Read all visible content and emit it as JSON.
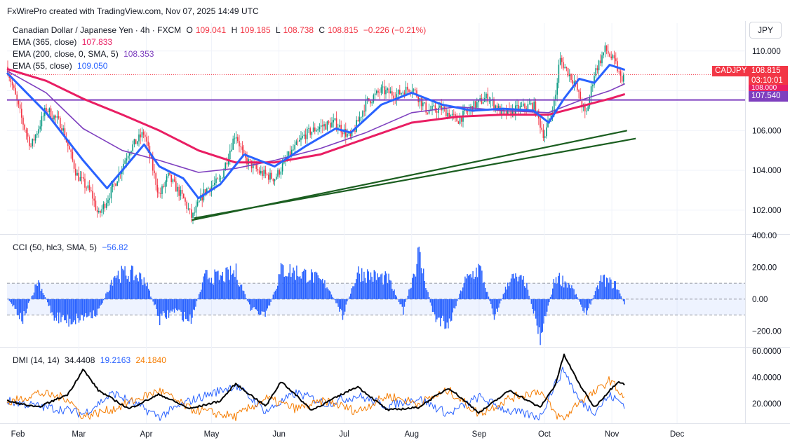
{
  "watermark": "FxWirePro created with TradingView.com, Nov 07, 2025 14:49 UTC",
  "currency": "JPY",
  "main_legend": {
    "symbol": "Canadian Dollar / Japanese Yen · 4h · FXCM",
    "o_label": "O",
    "o_value": "109.041",
    "h_label": "H",
    "h_value": "109.185",
    "l_label": "L",
    "l_value": "108.738",
    "c_label": "C",
    "c_value": "108.815",
    "change": "−0.226 (−0.21%)",
    "ema365_label": "EMA (365, close)",
    "ema365_value": "107.833",
    "ema200_label": "EMA (200, close, 0, SMA, 5)",
    "ema200_value": "108.353",
    "ema55_label": "EMA (55, close)",
    "ema55_value": "109.050"
  },
  "price_tags": {
    "symbol_tag": "CADJPY",
    "last_price": "108.815",
    "countdown": "03:10:01",
    "hidden_level": "108.000",
    "horizontal_level": "107.540"
  },
  "cci_legend": {
    "label": "CCI (50, hlc3, SMA, 5)",
    "value": "−56.82"
  },
  "dmi_legend": {
    "label": "DMI (14, 14)",
    "adx": "34.4408",
    "plus_di": "19.2163",
    "minus_di": "24.1840"
  },
  "colors": {
    "up": "#089981",
    "down": "#f23645",
    "ema55": "#2962ff",
    "ema200": "#7e3fbf",
    "ema365": "#e91e63",
    "hline": "#7e3fbf",
    "trend": "#1b5e20",
    "cci": "#2962ff",
    "adx": "#000000",
    "plus_di": "#2962ff",
    "minus_di": "#f57c00"
  },
  "chart_data": [
    {
      "type": "candlestick",
      "timeframe": "4h",
      "x_tick_labels": [
        "Feb",
        "Mar",
        "Apr",
        "May",
        "Jun",
        "Jul",
        "Aug",
        "Sep",
        "Oct",
        "Nov",
        "Dec"
      ],
      "y_tick_labels": [
        "102.000",
        "104.000",
        "106.000",
        "108.000",
        "110.000"
      ],
      "ylim": [
        100.8,
        111.4
      ],
      "price_path": [
        [
          "2025-01-27",
          109.2
        ],
        [
          "2025-02-03",
          106.5
        ],
        [
          "2025-02-07",
          105.2
        ],
        [
          "2025-02-14",
          107.1
        ],
        [
          "2025-02-21",
          106.3
        ],
        [
          "2025-02-28",
          103.8
        ],
        [
          "2025-03-07",
          102.8
        ],
        [
          "2025-03-10",
          101.7
        ],
        [
          "2025-03-17",
          103.2
        ],
        [
          "2025-03-24",
          105.0
        ],
        [
          "2025-03-31",
          105.9
        ],
        [
          "2025-04-07",
          102.7
        ],
        [
          "2025-04-11",
          103.7
        ],
        [
          "2025-04-18",
          102.6
        ],
        [
          "2025-04-22",
          101.6
        ],
        [
          "2025-04-28",
          103.0
        ],
        [
          "2025-05-05",
          103.5
        ],
        [
          "2025-05-12",
          105.9
        ],
        [
          "2025-05-16",
          104.6
        ],
        [
          "2025-05-23",
          103.9
        ],
        [
          "2025-05-30",
          103.6
        ],
        [
          "2025-06-06",
          104.8
        ],
        [
          "2025-06-13",
          105.8
        ],
        [
          "2025-06-20",
          106.2
        ],
        [
          "2025-06-27",
          106.4
        ],
        [
          "2025-07-04",
          105.6
        ],
        [
          "2025-07-11",
          107.4
        ],
        [
          "2025-07-18",
          108.0
        ],
        [
          "2025-07-25",
          107.8
        ],
        [
          "2025-08-01",
          108.2
        ],
        [
          "2025-08-08",
          107.0
        ],
        [
          "2025-08-15",
          107.1
        ],
        [
          "2025-08-22",
          106.5
        ],
        [
          "2025-08-29",
          107.2
        ],
        [
          "2025-09-05",
          107.7
        ],
        [
          "2025-09-12",
          106.8
        ],
        [
          "2025-09-19",
          107.1
        ],
        [
          "2025-09-26",
          107.3
        ],
        [
          "2025-10-01",
          105.7
        ],
        [
          "2025-10-06",
          107.6
        ],
        [
          "2025-10-08",
          109.6
        ],
        [
          "2025-10-15",
          108.4
        ],
        [
          "2025-10-20",
          106.7
        ],
        [
          "2025-10-24",
          108.9
        ],
        [
          "2025-10-29",
          110.1
        ],
        [
          "2025-11-03",
          109.3
        ],
        [
          "2025-11-05",
          108.6
        ],
        [
          "2025-11-07",
          108.815
        ]
      ],
      "ema55_path": [
        [
          "2025-01-27",
          108.9
        ],
        [
          "2025-02-14",
          106.9
        ],
        [
          "2025-03-03",
          104.5
        ],
        [
          "2025-03-14",
          103.1
        ],
        [
          "2025-03-21",
          104.0
        ],
        [
          "2025-03-31",
          105.3
        ],
        [
          "2025-04-07",
          104.2
        ],
        [
          "2025-04-18",
          103.6
        ],
        [
          "2025-04-25",
          102.6
        ],
        [
          "2025-05-05",
          103.3
        ],
        [
          "2025-05-16",
          104.8
        ],
        [
          "2025-05-30",
          104.2
        ],
        [
          "2025-06-13",
          105.2
        ],
        [
          "2025-06-27",
          106.1
        ],
        [
          "2025-07-04",
          105.9
        ],
        [
          "2025-07-18",
          107.3
        ],
        [
          "2025-08-01",
          107.9
        ],
        [
          "2025-08-15",
          107.3
        ],
        [
          "2025-08-29",
          107.0
        ],
        [
          "2025-09-12",
          107.1
        ],
        [
          "2025-09-26",
          107.0
        ],
        [
          "2025-10-03",
          106.4
        ],
        [
          "2025-10-10",
          107.6
        ],
        [
          "2025-10-17",
          108.6
        ],
        [
          "2025-10-24",
          108.4
        ],
        [
          "2025-10-31",
          109.3
        ],
        [
          "2025-11-07",
          109.05
        ]
      ],
      "ema200_path": [
        [
          "2025-01-27",
          109.0
        ],
        [
          "2025-02-14",
          107.9
        ],
        [
          "2025-03-03",
          106.1
        ],
        [
          "2025-03-21",
          105.0
        ],
        [
          "2025-04-07",
          104.5
        ],
        [
          "2025-04-25",
          103.9
        ],
        [
          "2025-05-12",
          104.1
        ],
        [
          "2025-05-30",
          104.5
        ],
        [
          "2025-06-20",
          105.1
        ],
        [
          "2025-07-11",
          105.9
        ],
        [
          "2025-08-01",
          106.9
        ],
        [
          "2025-08-22",
          107.2
        ],
        [
          "2025-09-12",
          107.0
        ],
        [
          "2025-10-03",
          106.9
        ],
        [
          "2025-10-17",
          107.5
        ],
        [
          "2025-10-31",
          108.0
        ],
        [
          "2025-11-07",
          108.353
        ]
      ],
      "ema365_path": [
        [
          "2025-01-27",
          109.1
        ],
        [
          "2025-02-14",
          108.5
        ],
        [
          "2025-03-03",
          107.6
        ],
        [
          "2025-03-21",
          106.8
        ],
        [
          "2025-04-07",
          106.0
        ],
        [
          "2025-04-25",
          105.0
        ],
        [
          "2025-05-12",
          104.4
        ],
        [
          "2025-05-30",
          104.4
        ],
        [
          "2025-06-20",
          104.8
        ],
        [
          "2025-07-11",
          105.6
        ],
        [
          "2025-08-01",
          106.4
        ],
        [
          "2025-08-22",
          106.7
        ],
        [
          "2025-09-12",
          106.8
        ],
        [
          "2025-10-03",
          106.8
        ],
        [
          "2025-10-17",
          107.2
        ],
        [
          "2025-10-31",
          107.6
        ],
        [
          "2025-11-07",
          107.833
        ]
      ],
      "horizontal_line": 107.54,
      "trendlines": [
        [
          [
            "2025-04-22",
            101.5
          ],
          [
            "2025-11-08",
            106.0
          ]
        ],
        [
          [
            "2025-04-23",
            101.6
          ],
          [
            "2025-11-12",
            105.6
          ]
        ]
      ]
    },
    {
      "type": "bar",
      "name": "CCI (50, hlc3, SMA, 5)",
      "y_tick_labels": [
        "400.00",
        "200.00",
        "0.00",
        "−200.00"
      ],
      "ylim": [
        -300,
        400
      ],
      "band": [
        -100,
        100
      ],
      "values_path": [
        [
          "2025-01-27",
          10
        ],
        [
          "2025-02-03",
          -150
        ],
        [
          "2025-02-10",
          140
        ],
        [
          "2025-02-17",
          -120
        ],
        [
          "2025-02-24",
          -160
        ],
        [
          "2025-03-03",
          -130
        ],
        [
          "2025-03-10",
          -90
        ],
        [
          "2025-03-17",
          180
        ],
        [
          "2025-03-24",
          190
        ],
        [
          "2025-03-31",
          150
        ],
        [
          "2025-04-07",
          -150
        ],
        [
          "2025-04-14",
          -80
        ],
        [
          "2025-04-21",
          -160
        ],
        [
          "2025-04-28",
          170
        ],
        [
          "2025-05-05",
          160
        ],
        [
          "2025-05-12",
          200
        ],
        [
          "2025-05-19",
          -80
        ],
        [
          "2025-05-26",
          -120
        ],
        [
          "2025-06-02",
          220
        ],
        [
          "2025-06-09",
          200
        ],
        [
          "2025-06-16",
          170
        ],
        [
          "2025-06-23",
          100
        ],
        [
          "2025-06-30",
          -120
        ],
        [
          "2025-07-07",
          200
        ],
        [
          "2025-07-14",
          170
        ],
        [
          "2025-07-21",
          150
        ],
        [
          "2025-07-28",
          -90
        ],
        [
          "2025-08-04",
          330
        ],
        [
          "2025-08-11",
          -130
        ],
        [
          "2025-08-18",
          -180
        ],
        [
          "2025-08-25",
          130
        ],
        [
          "2025-09-01",
          230
        ],
        [
          "2025-09-08",
          -130
        ],
        [
          "2025-09-15",
          160
        ],
        [
          "2025-09-22",
          130
        ],
        [
          "2025-09-29",
          -270
        ],
        [
          "2025-10-06",
          170
        ],
        [
          "2025-10-13",
          100
        ],
        [
          "2025-10-20",
          -110
        ],
        [
          "2025-10-27",
          150
        ],
        [
          "2025-11-03",
          100
        ],
        [
          "2025-11-07",
          -56.82
        ]
      ]
    },
    {
      "type": "line",
      "name": "DMI (14, 14)",
      "y_tick_labels": [
        "20.0000",
        "40.0000",
        "60.0000"
      ],
      "ylim": [
        5,
        62
      ],
      "series": [
        {
          "name": "ADX",
          "path": [
            [
              "2025-01-27",
              22
            ],
            [
              "2025-02-10",
              17
            ],
            [
              "2025-02-24",
              27
            ],
            [
              "2025-03-03",
              46
            ],
            [
              "2025-03-10",
              30
            ],
            [
              "2025-03-24",
              16
            ],
            [
              "2025-04-07",
              27
            ],
            [
              "2025-04-21",
              16
            ],
            [
              "2025-05-05",
              22
            ],
            [
              "2025-05-12",
              35
            ],
            [
              "2025-05-26",
              18
            ],
            [
              "2025-06-02",
              37
            ],
            [
              "2025-06-16",
              15
            ],
            [
              "2025-07-07",
              33
            ],
            [
              "2025-07-21",
              15
            ],
            [
              "2025-08-04",
              17
            ],
            [
              "2025-08-18",
              32
            ],
            [
              "2025-09-01",
              13
            ],
            [
              "2025-09-15",
              30
            ],
            [
              "2025-09-29",
              17
            ],
            [
              "2025-10-06",
              34
            ],
            [
              "2025-10-10",
              57
            ],
            [
              "2025-10-17",
              35
            ],
            [
              "2025-10-24",
              17
            ],
            [
              "2025-10-31",
              30
            ],
            [
              "2025-11-04",
              37
            ],
            [
              "2025-11-07",
              34.44
            ]
          ]
        },
        {
          "name": "+DI",
          "path": [
            [
              "2025-01-27",
              22
            ],
            [
              "2025-02-10",
              18
            ],
            [
              "2025-02-24",
              15
            ],
            [
              "2025-03-03",
              12
            ],
            [
              "2025-03-17",
              28
            ],
            [
              "2025-04-07",
              10
            ],
            [
              "2025-04-21",
              22
            ],
            [
              "2025-05-12",
              34
            ],
            [
              "2025-05-26",
              14
            ],
            [
              "2025-06-09",
              28
            ],
            [
              "2025-06-23",
              20
            ],
            [
              "2025-07-07",
              26
            ],
            [
              "2025-07-21",
              18
            ],
            [
              "2025-08-04",
              24
            ],
            [
              "2025-08-18",
              12
            ],
            [
              "2025-09-01",
              25
            ],
            [
              "2025-09-15",
              14
            ],
            [
              "2025-09-29",
              10
            ],
            [
              "2025-10-06",
              35
            ],
            [
              "2025-10-10",
              46
            ],
            [
              "2025-10-17",
              22
            ],
            [
              "2025-10-24",
              14
            ],
            [
              "2025-10-31",
              26
            ],
            [
              "2025-11-07",
              19.22
            ]
          ]
        },
        {
          "name": "−DI",
          "path": [
            [
              "2025-01-27",
              20
            ],
            [
              "2025-02-10",
              28
            ],
            [
              "2025-02-24",
              24
            ],
            [
              "2025-03-03",
              10
            ],
            [
              "2025-03-17",
              16
            ],
            [
              "2025-04-07",
              30
            ],
            [
              "2025-04-21",
              16
            ],
            [
              "2025-05-12",
              10
            ],
            [
              "2025-05-26",
              24
            ],
            [
              "2025-06-09",
              16
            ],
            [
              "2025-06-23",
              22
            ],
            [
              "2025-07-07",
              14
            ],
            [
              "2025-07-21",
              26
            ],
            [
              "2025-08-04",
              20
            ],
            [
              "2025-08-18",
              30
            ],
            [
              "2025-09-01",
              12
            ],
            [
              "2025-09-15",
              24
            ],
            [
              "2025-09-29",
              30
            ],
            [
              "2025-10-06",
              12
            ],
            [
              "2025-10-10",
              8
            ],
            [
              "2025-10-17",
              22
            ],
            [
              "2025-10-24",
              28
            ],
            [
              "2025-10-31",
              38
            ],
            [
              "2025-11-07",
              24.18
            ]
          ]
        }
      ]
    }
  ]
}
